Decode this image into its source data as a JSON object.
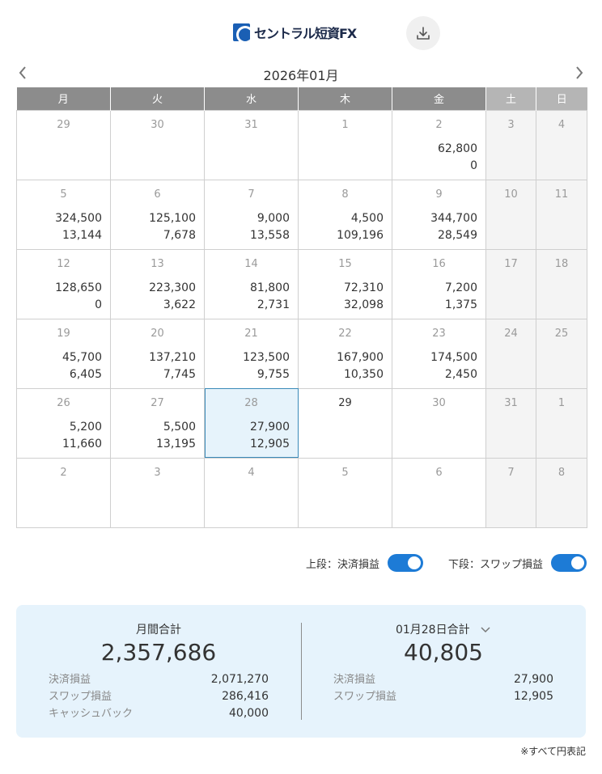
{
  "header": {
    "logo_text": "セントラル短資FX",
    "download_icon": "download-icon"
  },
  "calendar": {
    "month_title": "2026年01月",
    "weekdays": [
      "月",
      "火",
      "水",
      "木",
      "金",
      "土",
      "日"
    ],
    "weeks": [
      [
        {
          "day": "29",
          "top": "",
          "bottom": ""
        },
        {
          "day": "30",
          "top": "",
          "bottom": ""
        },
        {
          "day": "31",
          "top": "",
          "bottom": ""
        },
        {
          "day": "1",
          "top": "",
          "bottom": ""
        },
        {
          "day": "2",
          "top": "62,800",
          "bottom": "0"
        },
        {
          "day": "3",
          "top": "",
          "bottom": ""
        },
        {
          "day": "4",
          "top": "",
          "bottom": ""
        }
      ],
      [
        {
          "day": "5",
          "top": "324,500",
          "bottom": "13,144"
        },
        {
          "day": "6",
          "top": "125,100",
          "bottom": "7,678"
        },
        {
          "day": "7",
          "top": "9,000",
          "bottom": "13,558"
        },
        {
          "day": "8",
          "top": "4,500",
          "bottom": "109,196"
        },
        {
          "day": "9",
          "top": "344,700",
          "bottom": "28,549"
        },
        {
          "day": "10",
          "top": "",
          "bottom": ""
        },
        {
          "day": "11",
          "top": "",
          "bottom": ""
        }
      ],
      [
        {
          "day": "12",
          "top": "128,650",
          "bottom": "0"
        },
        {
          "day": "13",
          "top": "223,300",
          "bottom": "3,622"
        },
        {
          "day": "14",
          "top": "81,800",
          "bottom": "2,731"
        },
        {
          "day": "15",
          "top": "72,310",
          "bottom": "32,098"
        },
        {
          "day": "16",
          "top": "7,200",
          "bottom": "1,375"
        },
        {
          "day": "17",
          "top": "",
          "bottom": ""
        },
        {
          "day": "18",
          "top": "",
          "bottom": ""
        }
      ],
      [
        {
          "day": "19",
          "top": "45,700",
          "bottom": "6,405"
        },
        {
          "day": "20",
          "top": "137,210",
          "bottom": "7,745"
        },
        {
          "day": "21",
          "top": "123,500",
          "bottom": "9,755"
        },
        {
          "day": "22",
          "top": "167,900",
          "bottom": "10,350"
        },
        {
          "day": "23",
          "top": "174,500",
          "bottom": "2,450"
        },
        {
          "day": "24",
          "top": "",
          "bottom": ""
        },
        {
          "day": "25",
          "top": "",
          "bottom": ""
        }
      ],
      [
        {
          "day": "26",
          "top": "5,200",
          "bottom": "11,660"
        },
        {
          "day": "27",
          "top": "5,500",
          "bottom": "13,195"
        },
        {
          "day": "28",
          "top": "27,900",
          "bottom": "12,905",
          "selected": true
        },
        {
          "day": "29",
          "top": "",
          "bottom": "",
          "today": true
        },
        {
          "day": "30",
          "top": "",
          "bottom": ""
        },
        {
          "day": "31",
          "top": "",
          "bottom": ""
        },
        {
          "day": "1",
          "top": "",
          "bottom": ""
        }
      ],
      [
        {
          "day": "2",
          "top": "",
          "bottom": ""
        },
        {
          "day": "3",
          "top": "",
          "bottom": ""
        },
        {
          "day": "4",
          "top": "",
          "bottom": ""
        },
        {
          "day": "5",
          "top": "",
          "bottom": ""
        },
        {
          "day": "6",
          "top": "",
          "bottom": ""
        },
        {
          "day": "7",
          "top": "",
          "bottom": ""
        },
        {
          "day": "8",
          "top": "",
          "bottom": ""
        }
      ]
    ]
  },
  "toggles": {
    "upper_label": "上段：決済損益",
    "lower_label": "下段：スワップ損益",
    "upper_on": true,
    "lower_on": true
  },
  "summary": {
    "monthly": {
      "heading": "月間合計",
      "total": "2,357,686",
      "rows": [
        {
          "label": "決済損益",
          "value": "2,071,270"
        },
        {
          "label": "スワップ損益",
          "value": "286,416"
        },
        {
          "label": "キャッシュバック",
          "value": "40,000"
        }
      ]
    },
    "daily": {
      "heading": "01月28日合計",
      "total": "40,805",
      "rows": [
        {
          "label": "決済損益",
          "value": "27,900"
        },
        {
          "label": "スワップ損益",
          "value": "12,905"
        }
      ]
    }
  },
  "footnote": "※すべて円表記",
  "colors": {
    "accent": "#1d7bd6",
    "header_gray": "#8c8c8c",
    "weekend_header": "#b5b5b5",
    "summary_bg": "#e6f3fc",
    "selected_bg": "#e6f3fb"
  }
}
